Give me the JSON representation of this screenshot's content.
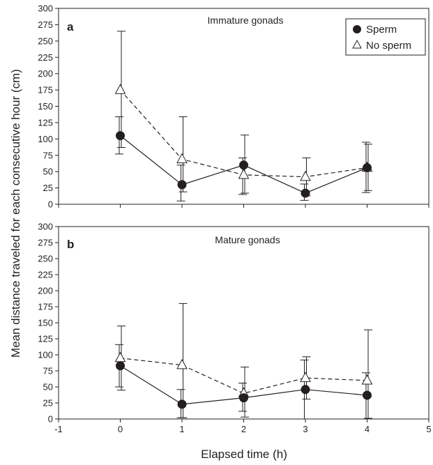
{
  "figure": {
    "ylabel": "Mean distance traveled for each consecutive hour (cm)",
    "xlabel": "Elapsed time (h)"
  },
  "legend": {
    "sperm_label": "Sperm",
    "no_sperm_label": "No sperm"
  },
  "chart_data": [
    {
      "type": "line",
      "panel": "a",
      "title": "Immature gonads",
      "x_ticks": [
        -1,
        0,
        1,
        2,
        3,
        4,
        5
      ],
      "xlim": [
        -1,
        5
      ],
      "ylim": [
        0,
        300
      ],
      "y_ticks": [
        0,
        25,
        50,
        75,
        100,
        125,
        150,
        175,
        200,
        225,
        250,
        275,
        300
      ],
      "legend_position": "top-right",
      "x": [
        0,
        1,
        2,
        3,
        4
      ],
      "series": [
        {
          "name": "Sperm",
          "marker": "filled-circle",
          "line": "solid",
          "values": [
            105,
            30,
            60,
            17,
            56
          ],
          "error_low": [
            77,
            5,
            15,
            6,
            18
          ],
          "error_high": [
            134,
            60,
            71,
            31,
            95
          ]
        },
        {
          "name": "No sperm",
          "marker": "open-triangle",
          "line": "dashed",
          "values": [
            175,
            69,
            45,
            42,
            56
          ],
          "error_low": [
            87,
            19,
            17,
            13,
            21
          ],
          "error_high": [
            265,
            134,
            106,
            71,
            92
          ]
        }
      ]
    },
    {
      "type": "line",
      "panel": "b",
      "title": "Mature gonads",
      "x_ticks": [
        -1,
        0,
        1,
        2,
        3,
        4,
        5
      ],
      "xlim": [
        -1,
        5
      ],
      "ylim": [
        0,
        300
      ],
      "y_ticks": [
        0,
        25,
        50,
        75,
        100,
        125,
        150,
        175,
        200,
        225,
        250,
        275,
        300
      ],
      "x": [
        0,
        1,
        2,
        3,
        4
      ],
      "series": [
        {
          "name": "Sperm",
          "marker": "filled-circle",
          "line": "solid",
          "values": [
            83,
            23,
            33,
            46,
            37
          ],
          "error_low": [
            50,
            2,
            12,
            0,
            0
          ],
          "error_high": [
            116,
            46,
            56,
            92,
            72
          ]
        },
        {
          "name": "No sperm",
          "marker": "open-triangle",
          "line": "dashed",
          "values": [
            95,
            84,
            40,
            64,
            60
          ],
          "error_low": [
            45,
            2,
            3,
            31,
            1
          ],
          "error_high": [
            145,
            180,
            81,
            97,
            139
          ]
        }
      ]
    }
  ]
}
